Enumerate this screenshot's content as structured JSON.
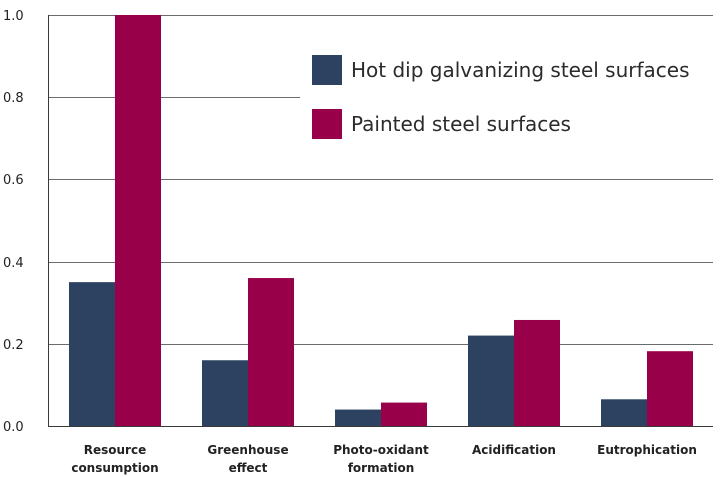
{
  "chart_data": {
    "type": "bar",
    "title": "",
    "xlabel": "",
    "ylabel": "",
    "ylim": [
      0,
      1.0
    ],
    "yticks": [
      "0.0",
      "0.2",
      "0.4",
      "0.6",
      "0.8",
      "1.0"
    ],
    "grid": "horizontal",
    "legend_position": "top-right",
    "categories": [
      [
        "Resource",
        "consumption"
      ],
      [
        "Greenhouse",
        "effect"
      ],
      [
        "Photo-oxidant",
        "formation"
      ],
      [
        "Acidification"
      ],
      [
        "Eutrophication"
      ]
    ],
    "series": [
      {
        "name": "Hot dip galvanizing steel surfaces",
        "color": "#2c4260",
        "values": [
          0.35,
          0.16,
          0.04,
          0.22,
          0.065
        ]
      },
      {
        "name": "Painted steel surfaces",
        "color": "#98004a",
        "values": [
          1.0,
          0.36,
          0.057,
          0.258,
          0.182
        ]
      }
    ]
  }
}
